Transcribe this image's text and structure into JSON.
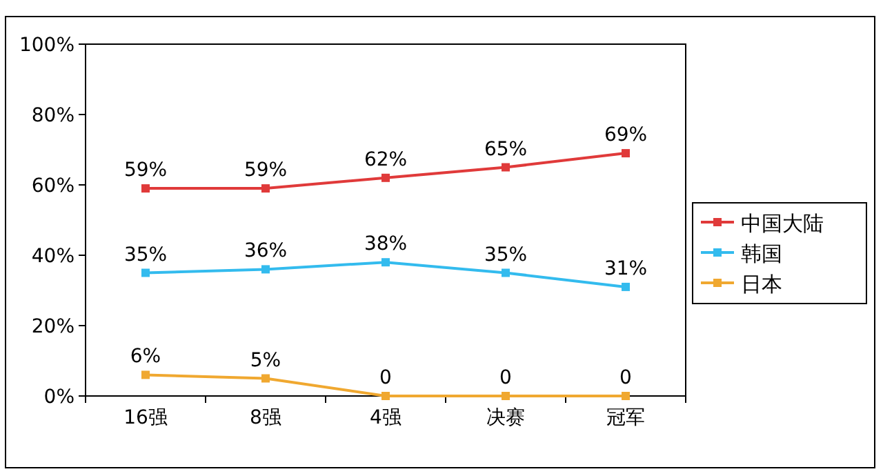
{
  "chart_data": {
    "type": "line",
    "categories": [
      "16强",
      "8强",
      "4强",
      "决赛",
      "冠军"
    ],
    "series": [
      {
        "name": "中国大陆",
        "color": "#e03a3a",
        "values": [
          59,
          59,
          62,
          65,
          69
        ],
        "value_labels": [
          "59%",
          "59%",
          "62%",
          "65%",
          "69%"
        ]
      },
      {
        "name": "韩国",
        "color": "#33bbee",
        "values": [
          35,
          36,
          38,
          35,
          31
        ],
        "value_labels": [
          "35%",
          "36%",
          "38%",
          "35%",
          "31%"
        ]
      },
      {
        "name": "日本",
        "color": "#f0a830",
        "values": [
          6,
          5,
          0,
          0,
          0
        ],
        "value_labels": [
          "6%",
          "5%",
          "0",
          "0",
          "0"
        ]
      }
    ],
    "ylim": [
      0,
      100
    ],
    "yticks": [
      {
        "value": 0,
        "label": "0%"
      },
      {
        "value": 20,
        "label": "20%"
      },
      {
        "value": 40,
        "label": "40%"
      },
      {
        "value": 60,
        "label": "60%"
      },
      {
        "value": 80,
        "label": "80%"
      },
      {
        "value": 100,
        "label": "100%"
      }
    ],
    "legend": "right",
    "marker": "square",
    "line_style": "solid",
    "grid": false
  }
}
